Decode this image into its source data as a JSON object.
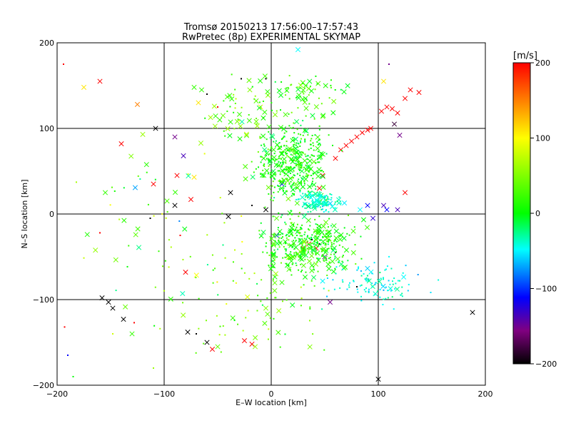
{
  "chart_data": {
    "type": "scatter",
    "title_line1": "Tromsø 20150213 17:56:00–17:57:43",
    "title_line2": "RwPretec (8p) EXPERIMENTAL SKYMAP",
    "xlabel": "E–W location [km]",
    "ylabel": "N–S location [km]",
    "xlim": [
      -200,
      200
    ],
    "ylim": [
      -200,
      200
    ],
    "x_ticks": [
      "−200",
      "−100",
      "0",
      "100",
      "200"
    ],
    "y_ticks": [
      "200",
      "100",
      "0",
      "−100",
      "−200"
    ],
    "x_tick_values": [
      -200,
      -100,
      0,
      100,
      200
    ],
    "y_tick_values": [
      200,
      100,
      0,
      -100,
      -200
    ],
    "grid": true,
    "colorbar": {
      "label": "[m/s]",
      "range": [
        -200,
        200
      ],
      "tick_labels": [
        "200",
        "100",
        "0",
        "−100",
        "−200"
      ],
      "tick_values": [
        200,
        100,
        0,
        -100,
        -200
      ]
    },
    "markers": {
      "x_cross": "large detections",
      "dot": "small detections"
    },
    "points": [
      [
        -194,
        175,
        200,
        "d"
      ],
      [
        -175,
        148,
        110,
        "x"
      ],
      [
        -160,
        155,
        200,
        "x"
      ],
      [
        -160,
        -22,
        200,
        "d"
      ],
      [
        -155,
        25,
        20,
        "x"
      ],
      [
        -148,
        -140,
        80,
        "d"
      ],
      [
        -140,
        82,
        200,
        "x"
      ],
      [
        -128,
        -127,
        200,
        "d"
      ],
      [
        -125,
        128,
        150,
        "x"
      ],
      [
        -120,
        93,
        60,
        "x"
      ],
      [
        -110,
        35,
        200,
        "x"
      ],
      [
        -108,
        100,
        -200,
        "x"
      ],
      [
        -110,
        -180,
        60,
        "d"
      ],
      [
        -113,
        -5,
        -200,
        "d"
      ],
      [
        -90,
        10,
        -200,
        "x"
      ],
      [
        -90,
        90,
        -150,
        "x"
      ],
      [
        -88,
        45,
        200,
        "x"
      ],
      [
        -85,
        -25,
        200,
        "d"
      ],
      [
        -80,
        -68,
        200,
        "x"
      ],
      [
        -82,
        68,
        -130,
        "x"
      ],
      [
        -78,
        -138,
        -200,
        "x"
      ],
      [
        -70,
        -140,
        -200,
        "d"
      ],
      [
        -75,
        17,
        200,
        "x"
      ],
      [
        -72,
        43,
        110,
        "x"
      ],
      [
        -68,
        130,
        110,
        "x"
      ],
      [
        -72,
        148,
        20,
        "x"
      ],
      [
        -65,
        145,
        20,
        "x"
      ],
      [
        -60,
        -150,
        -200,
        "x"
      ],
      [
        -55,
        -158,
        200,
        "x"
      ],
      [
        -50,
        -155,
        40,
        "x"
      ],
      [
        -45,
        115,
        40,
        "x"
      ],
      [
        -40,
        -3,
        -200,
        "x"
      ],
      [
        -38,
        25,
        -200,
        "x"
      ],
      [
        -25,
        -148,
        200,
        "x"
      ],
      [
        -18,
        -152,
        200,
        "x"
      ],
      [
        -15,
        -155,
        60,
        "x"
      ],
      [
        -18,
        10,
        -200,
        "d"
      ],
      [
        -28,
        158,
        -200,
        "d"
      ],
      [
        -20,
        145,
        50,
        "x"
      ],
      [
        -10,
        125,
        110,
        "x"
      ],
      [
        25,
        192,
        -50,
        "x"
      ],
      [
        100,
        -193,
        -200,
        "x"
      ],
      [
        188,
        -115,
        -200,
        "x"
      ],
      [
        -158,
        -98,
        -200,
        "x"
      ],
      [
        -152,
        -103,
        -200,
        "x"
      ],
      [
        -148,
        -110,
        -200,
        "x"
      ],
      [
        -138,
        -123,
        -200,
        "x"
      ],
      [
        -193,
        -132,
        200,
        "d"
      ],
      [
        -190,
        -165,
        -100,
        "d"
      ],
      [
        -185,
        -190,
        0,
        "d"
      ],
      [
        -130,
        -140,
        20,
        "x"
      ],
      [
        -60,
        140,
        -200,
        "d"
      ],
      [
        5,
        -5,
        30,
        "x"
      ],
      [
        15,
        -60,
        0,
        "x"
      ],
      [
        20,
        -50,
        60,
        "x"
      ],
      [
        10,
        -80,
        20,
        "x"
      ],
      [
        -5,
        -110,
        50,
        "x"
      ],
      [
        30,
        -40,
        200,
        "x"
      ],
      [
        35,
        -35,
        200,
        "x"
      ],
      [
        42,
        -40,
        200,
        "x"
      ],
      [
        50,
        -50,
        -150,
        "x"
      ],
      [
        45,
        30,
        200,
        "x"
      ],
      [
        48,
        45,
        200,
        "x"
      ],
      [
        60,
        65,
        200,
        "x"
      ],
      [
        65,
        75,
        200,
        "x"
      ],
      [
        70,
        80,
        200,
        "x"
      ],
      [
        75,
        85,
        200,
        "x"
      ],
      [
        80,
        90,
        200,
        "x"
      ],
      [
        85,
        95,
        200,
        "x"
      ],
      [
        90,
        98,
        200,
        "x"
      ],
      [
        93,
        100,
        200,
        "x"
      ],
      [
        103,
        120,
        200,
        "x"
      ],
      [
        108,
        125,
        200,
        "x"
      ],
      [
        113,
        123,
        200,
        "x"
      ],
      [
        118,
        118,
        200,
        "x"
      ],
      [
        125,
        135,
        200,
        "x"
      ],
      [
        130,
        145,
        200,
        "x"
      ],
      [
        138,
        142,
        200,
        "x"
      ],
      [
        120,
        92,
        -150,
        "x"
      ],
      [
        115,
        105,
        -180,
        "x"
      ],
      [
        125,
        25,
        200,
        "x"
      ],
      [
        105,
        155,
        110,
        "x"
      ],
      [
        105,
        10,
        -130,
        "x"
      ],
      [
        95,
        -5,
        -120,
        "x"
      ],
      [
        108,
        5,
        -100,
        "x"
      ],
      [
        118,
        5,
        -130,
        "x"
      ],
      [
        90,
        10,
        -100,
        "x"
      ],
      [
        83,
        5,
        -50,
        "x"
      ],
      [
        55,
        -103,
        -150,
        "x"
      ],
      [
        -5,
        5,
        -200,
        "x"
      ],
      [
        5,
        -25,
        -100,
        "x"
      ],
      [
        10,
        35,
        -100,
        "x"
      ],
      [
        38,
        -30,
        -200,
        "d"
      ],
      [
        45,
        -35,
        -200,
        "d"
      ],
      [
        60,
        -45,
        -200,
        "d"
      ],
      [
        80,
        -85,
        -200,
        "d"
      ],
      [
        110,
        175,
        -150,
        "d"
      ],
      [
        -50,
        125,
        200,
        "d"
      ],
      [
        -5,
        158,
        -200,
        "d"
      ]
    ]
  }
}
